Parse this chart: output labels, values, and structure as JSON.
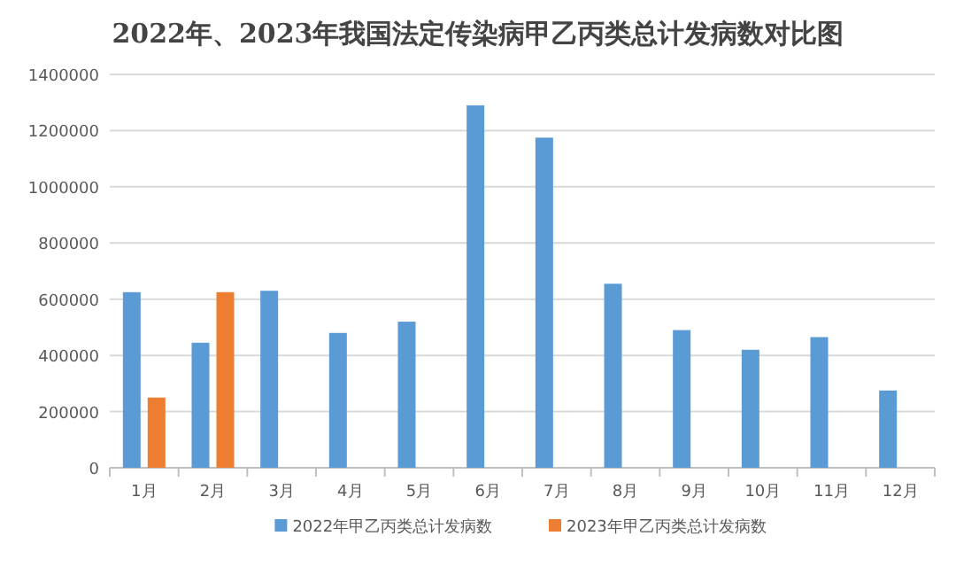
{
  "chart_data": {
    "type": "bar",
    "title": "2022年、2023年我国法定传染病甲乙丙类总计发病数对比图",
    "categories": [
      "1月",
      "2月",
      "3月",
      "4月",
      "5月",
      "6月",
      "7月",
      "8月",
      "9月",
      "10月",
      "11月",
      "12月"
    ],
    "series": [
      {
        "name": "2022年甲乙丙类总计发病数",
        "color": "#5b9bd5",
        "values": [
          625000,
          445000,
          630000,
          480000,
          520000,
          1290000,
          1175000,
          655000,
          490000,
          420000,
          465000,
          275000
        ]
      },
      {
        "name": "2023年甲乙丙类总计发病数",
        "color": "#ed7d31",
        "values": [
          250000,
          625000,
          null,
          null,
          null,
          null,
          null,
          null,
          null,
          null,
          null,
          null
        ]
      }
    ],
    "ylim": [
      0,
      1400000
    ],
    "yticks": [
      0,
      200000,
      400000,
      600000,
      800000,
      1000000,
      1200000,
      1400000
    ],
    "grid": "y",
    "legend": "bottom"
  }
}
